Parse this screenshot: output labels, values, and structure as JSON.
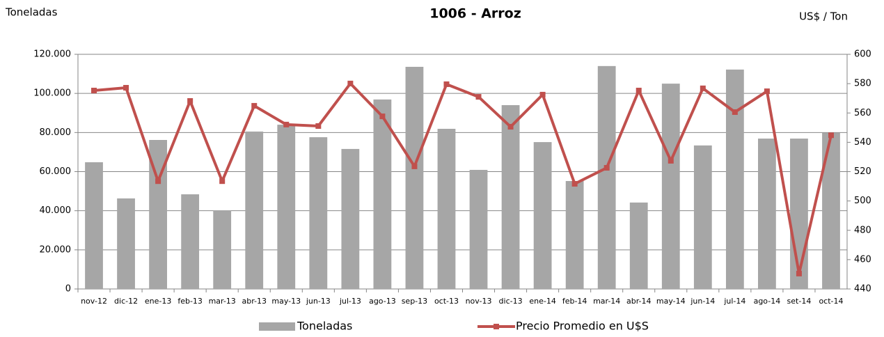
{
  "chart_data": {
    "type": "bar_line",
    "title": "1006 - Arroz",
    "y_label": "Toneladas",
    "y2_label": "US$ / Ton",
    "categories": [
      "nov-12",
      "dic-12",
      "ene-13",
      "feb-13",
      "mar-13",
      "abr-13",
      "may-13",
      "jun-13",
      "jul-13",
      "ago-13",
      "sep-13",
      "oct-13",
      "nov-13",
      "dic-13",
      "ene-14",
      "feb-14",
      "mar-14",
      "abr-14",
      "may-14",
      "jun-14",
      "jul-14",
      "ago-14",
      "set-14",
      "oct-14"
    ],
    "series": [
      {
        "name": "Toneladas",
        "type": "bar",
        "color": "#a6a6a6",
        "values": [
          64800,
          46300,
          76200,
          48400,
          40200,
          80500,
          84000,
          77600,
          71600,
          96900,
          113600,
          81900,
          60900,
          94000,
          75100,
          55200,
          114000,
          44200,
          105000,
          73400,
          112200,
          76900,
          76900,
          79800
        ]
      },
      {
        "name": "Precio Promedio en  U$S",
        "type": "line",
        "axis": "y2",
        "color": "#c0504d",
        "values": [
          575.3,
          577.2,
          513.5,
          568.2,
          513.5,
          564.9,
          552.1,
          551.1,
          580.1,
          557.7,
          523.6,
          579.6,
          571,
          550.6,
          572.5,
          511.7,
          522.6,
          575.3,
          527.4,
          576.8,
          560.6,
          574.8,
          450.5,
          544.8
        ]
      }
    ],
    "ylim": [
      0,
      120000
    ],
    "yticks": [
      0,
      {
        "value": 20000,
        "label": "20.000"
      },
      {
        "value": 40000,
        "label": "40.000"
      },
      {
        "value": 60000,
        "label": "60.000"
      },
      {
        "value": 80000,
        "label": "80.000"
      },
      {
        "value": 100000,
        "label": "100.000"
      },
      {
        "value": 120000,
        "label": "120.000"
      }
    ],
    "y2lim": [
      440,
      600
    ],
    "y2ticks": [
      440,
      460,
      480,
      500,
      520,
      540,
      560,
      580,
      600
    ],
    "grid": true,
    "legend": "bottom"
  }
}
